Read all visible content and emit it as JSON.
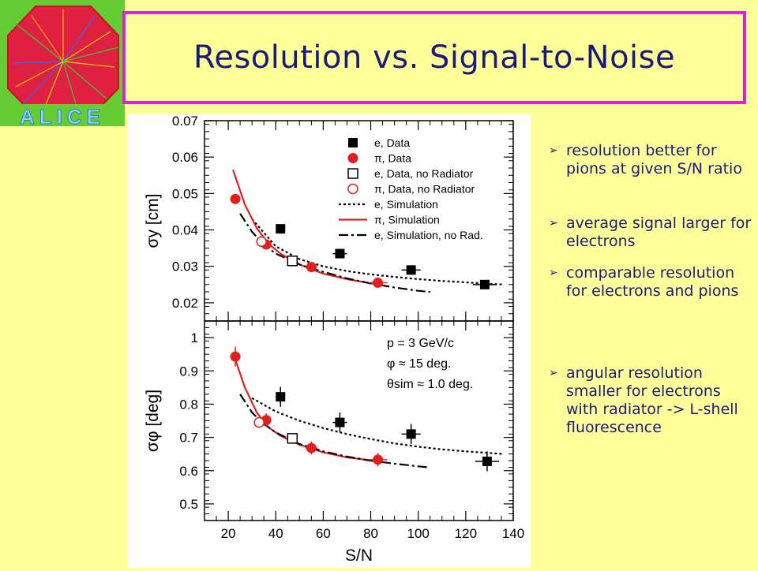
{
  "slide": {
    "title": "Resolution vs. Signal-to-Noise",
    "logo_text": "ALICE",
    "bullets": [
      "resolution better for pions at given S/N ratio",
      "average signal larger for electrons",
      "comparable resolution for electrons and pions",
      "angular resolution smaller for electrons with radiator -> L-shell fluorescence"
    ],
    "colors": {
      "background": "#ffff99",
      "title_border": "#e020c8",
      "text": "#1a1a7a",
      "pion_red": "#e02020"
    }
  },
  "chart_data": [
    {
      "type": "scatter",
      "ylabel": "σy [cm]",
      "xlim": [
        10,
        140
      ],
      "ylim": [
        0.015,
        0.07
      ],
      "yticks": [
        "0.02",
        "0.03",
        "0.04",
        "0.05",
        "0.06",
        "0.07"
      ],
      "ytick_values": [
        0.02,
        0.03,
        0.04,
        0.05,
        0.06,
        0.07
      ],
      "legend_position": "top-right",
      "legend": [
        "e, Data",
        "π, Data",
        "e, Data, no Radiator",
        "π, Data, no Radiator",
        "e, Simulation",
        "π, Simulation",
        "e, Simulation, no Rad."
      ],
      "series": [
        {
          "name": "e, Data",
          "style": "filled-square",
          "color": "#000000",
          "x": [
            42,
            67,
            97,
            128
          ],
          "y": [
            0.0403,
            0.0335,
            0.029,
            0.025
          ],
          "xerr": [
            1.5,
            3,
            4,
            5
          ]
        },
        {
          "name": "π, Data",
          "style": "filled-circle",
          "color": "#e02020",
          "x": [
            23,
            36,
            55,
            83
          ],
          "y": [
            0.0485,
            0.036,
            0.0298,
            0.0255
          ],
          "xerr": [
            1,
            1.5,
            2.5,
            4
          ]
        },
        {
          "name": "e, Data, no Radiator",
          "style": "open-square",
          "color": "#000000",
          "x": [
            47
          ],
          "y": [
            0.0315
          ],
          "xerr": [
            1.5
          ]
        },
        {
          "name": "π, Data, no Radiator",
          "style": "open-circle",
          "color": "#e02020",
          "x": [
            34
          ],
          "y": [
            0.0368
          ],
          "xerr": [
            1
          ]
        },
        {
          "name": "e, Simulation",
          "style": "dotted",
          "color": "#000000",
          "x": [
            30,
            40,
            50,
            60,
            70,
            80,
            90,
            100,
            110,
            120,
            130,
            136
          ],
          "y": [
            0.043,
            0.0355,
            0.032,
            0.03,
            0.0287,
            0.0278,
            0.0271,
            0.0265,
            0.026,
            0.0256,
            0.0252,
            0.025
          ]
        },
        {
          "name": "π, Simulation",
          "style": "solid",
          "color": "#e02020",
          "x": [
            22,
            27,
            32,
            37,
            42,
            50,
            60,
            70,
            83
          ],
          "y": [
            0.0565,
            0.047,
            0.0405,
            0.0362,
            0.0335,
            0.0305,
            0.028,
            0.0265,
            0.025
          ]
        },
        {
          "name": "e, Simulation, no Rad.",
          "style": "dash-dot",
          "color": "#000000",
          "x": [
            25,
            30,
            35,
            40,
            50,
            60,
            70,
            80,
            90,
            100,
            105
          ],
          "y": [
            0.0445,
            0.0395,
            0.036,
            0.0335,
            0.0305,
            0.0285,
            0.0267,
            0.0253,
            0.0242,
            0.0233,
            0.023
          ]
        }
      ]
    },
    {
      "type": "scatter",
      "xlabel": "S/N",
      "ylabel": "σφ [deg]",
      "xlim": [
        10,
        140
      ],
      "ylim": [
        0.45,
        1.05
      ],
      "xticks": [
        "20",
        "40",
        "60",
        "80",
        "100",
        "120",
        "140"
      ],
      "xtick_values": [
        20,
        40,
        60,
        80,
        100,
        120,
        140
      ],
      "yticks": [
        "0.5",
        "0.6",
        "0.7",
        "0.8",
        "0.9",
        "1"
      ],
      "ytick_values": [
        0.5,
        0.6,
        0.7,
        0.8,
        0.9,
        1.0
      ],
      "annotations": [
        "p = 3 GeV/c",
        "φ ≈ 15 deg.",
        "θsim ≈ 1.0 deg."
      ],
      "series": [
        {
          "name": "e, Data",
          "style": "filled-square",
          "color": "#000000",
          "x": [
            42,
            67,
            97,
            129
          ],
          "y": [
            0.822,
            0.745,
            0.71,
            0.628
          ],
          "xerr": [
            1.5,
            3,
            4,
            5
          ],
          "yerr": [
            0.03,
            0.03,
            0.03,
            0.03
          ]
        },
        {
          "name": "π, Data",
          "style": "filled-circle",
          "color": "#e02020",
          "x": [
            23,
            36,
            55,
            83
          ],
          "y": [
            0.943,
            0.752,
            0.668,
            0.633
          ],
          "xerr": [
            1,
            1.5,
            2.5,
            4
          ],
          "yerr": [
            0.03,
            0.02,
            0.02,
            0.02
          ]
        },
        {
          "name": "e, Data, no Radiator",
          "style": "open-square",
          "color": "#000000",
          "x": [
            47
          ],
          "y": [
            0.697
          ],
          "xerr": [
            1.5
          ]
        },
        {
          "name": "π, Data, no Radiator",
          "style": "open-circle",
          "color": "#e02020",
          "x": [
            33
          ],
          "y": [
            0.745
          ],
          "xerr": [
            1
          ]
        },
        {
          "name": "e, Simulation",
          "style": "dotted",
          "color": "#000000",
          "x": [
            30,
            40,
            50,
            60,
            70,
            80,
            90,
            100,
            110,
            120,
            136
          ],
          "y": [
            0.818,
            0.778,
            0.75,
            0.728,
            0.71,
            0.695,
            0.682,
            0.672,
            0.664,
            0.658,
            0.65
          ]
        },
        {
          "name": "π, Simulation",
          "style": "solid",
          "color": "#e02020",
          "x": [
            22,
            27,
            32,
            37,
            42,
            50,
            60,
            70,
            83
          ],
          "y": [
            0.955,
            0.85,
            0.775,
            0.73,
            0.705,
            0.678,
            0.655,
            0.64,
            0.628
          ]
        },
        {
          "name": "e, Simulation, no Rad.",
          "style": "dash-dot",
          "color": "#000000",
          "x": [
            25,
            30,
            35,
            40,
            50,
            60,
            70,
            80,
            90,
            100,
            104
          ],
          "y": [
            0.83,
            0.775,
            0.74,
            0.715,
            0.68,
            0.658,
            0.642,
            0.63,
            0.621,
            0.613,
            0.61
          ]
        }
      ]
    }
  ]
}
